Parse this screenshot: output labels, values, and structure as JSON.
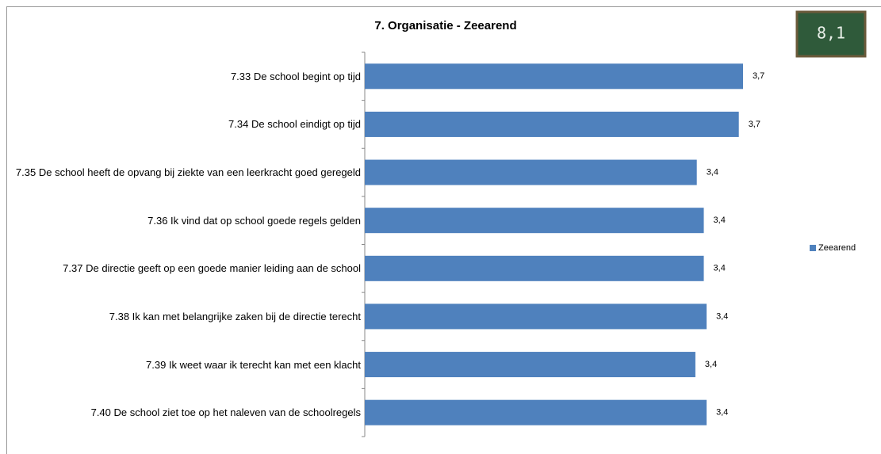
{
  "chart_data": {
    "type": "bar",
    "orientation": "horizontal",
    "title": "7. Organisatie - Zeearend",
    "badge": "8,1",
    "categories": [
      "7.33 De school begint op tijd",
      "7.34 De school eindigt op tijd",
      "7.35 De school heeft de opvang bij ziekte van een leerkracht goed geregeld",
      "7.36 Ik vind dat op school goede regels gelden",
      "7.37 De directie geeft op een goede manier leiding aan de school",
      "7.38 Ik kan met belangrijke zaken bij de directie terecht",
      "7.39 Ik weet waar ik terecht kan met een klacht",
      "7.40 De school ziet toe op het naleven van de schoolregels"
    ],
    "series": [
      {
        "name": "Zeearend",
        "color": "#4f81bd",
        "values": [
          3.7,
          3.67,
          3.37,
          3.42,
          3.42,
          3.44,
          3.36,
          3.44
        ],
        "value_labels": [
          "3,7",
          "3,7",
          "3,4",
          "3,4",
          "3,4",
          "3,4",
          "3,4",
          "3,4"
        ]
      }
    ],
    "xlim": [
      1,
      4
    ],
    "legend": "right"
  }
}
